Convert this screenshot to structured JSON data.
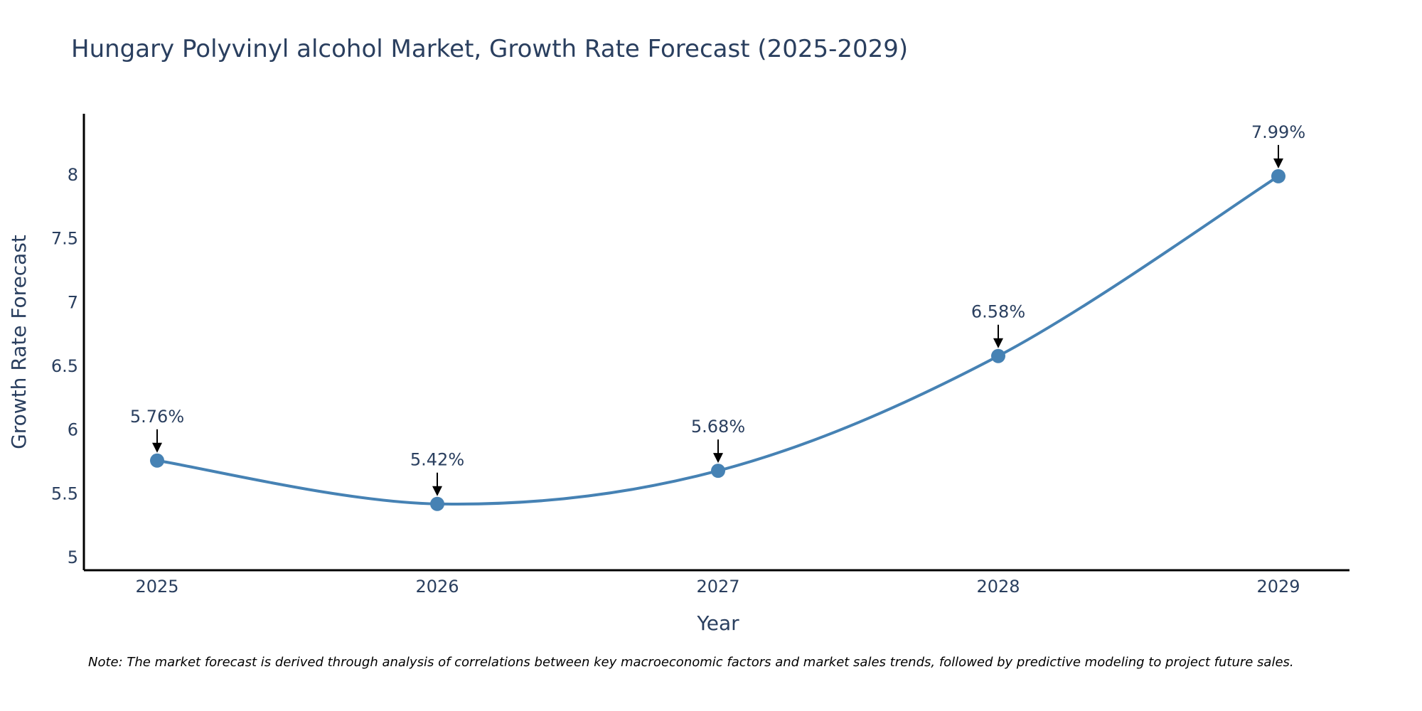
{
  "chart_data": {
    "type": "line",
    "title": "Hungary Polyvinyl alcohol Market, Growth Rate Forecast (2025-2029)",
    "xlabel": "Year",
    "ylabel": "Growth Rate Forecast",
    "categories": [
      "2025",
      "2026",
      "2027",
      "2028",
      "2029"
    ],
    "values": [
      5.76,
      5.42,
      5.68,
      6.58,
      7.99
    ],
    "data_labels": [
      "5.76%",
      "5.42%",
      "5.68%",
      "6.58%",
      "7.99%"
    ],
    "yticks": [
      "5",
      "5.5",
      "6",
      "6.5",
      "7",
      "7.5",
      "8"
    ],
    "ylim": [
      4.9,
      8.48
    ],
    "grid": false,
    "line_shape": "spline",
    "colors": {
      "line": "#4682b4",
      "marker": "#4682b4",
      "text": "#2a3f5f",
      "axis": "#000000",
      "arrow": "#000000"
    }
  },
  "note": "Note: The market forecast is derived through analysis of correlations between key macroeconomic factors and market sales trends, followed by predictive modeling to project future sales."
}
